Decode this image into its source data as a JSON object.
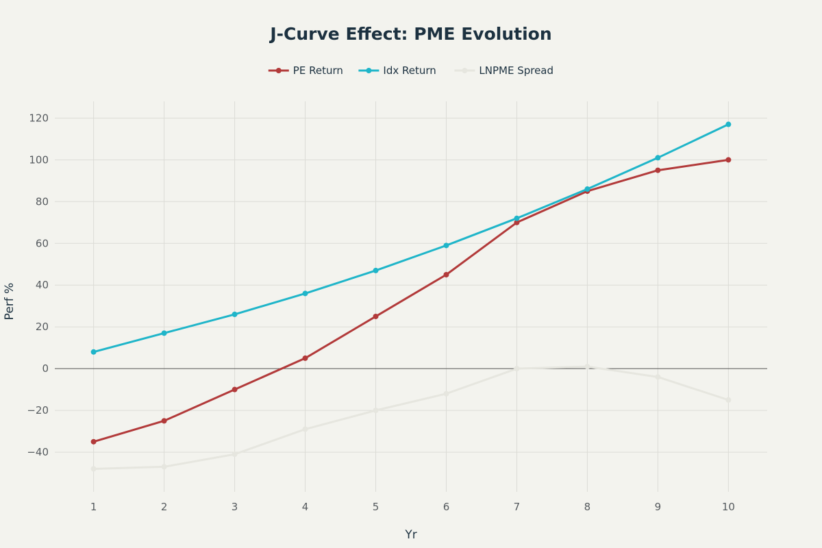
{
  "chart_data": {
    "type": "line",
    "title": "J-Curve Effect: PME Evolution",
    "xlabel": "Yr",
    "ylabel": "Perf %",
    "x": [
      1,
      2,
      3,
      4,
      5,
      6,
      7,
      8,
      9,
      10
    ],
    "xlim": [
      0.45,
      10.55
    ],
    "ylim": [
      -59,
      128
    ],
    "yticks": [
      -40,
      -20,
      0,
      20,
      40,
      60,
      80,
      100,
      120
    ],
    "y_tick_labels": [
      "−40",
      "−20",
      "0",
      "20",
      "40",
      "60",
      "80",
      "100",
      "120"
    ],
    "grid": true,
    "zero_line": true,
    "legend_position": "top-center",
    "series": [
      {
        "name": "PE Return",
        "color": "#b23a3a",
        "values": [
          -35,
          -25,
          -10,
          5,
          25,
          45,
          70,
          85,
          95,
          100
        ]
      },
      {
        "name": "Idx Return",
        "color": "#1fb5c9",
        "values": [
          8,
          17,
          26,
          36,
          47,
          59,
          72,
          86,
          101,
          117
        ]
      },
      {
        "name": "LNPME Spread",
        "color": "#e6e6df",
        "values": [
          -48,
          -47,
          -41,
          -29,
          -20,
          -12,
          0,
          1,
          -4,
          -15
        ]
      }
    ]
  }
}
